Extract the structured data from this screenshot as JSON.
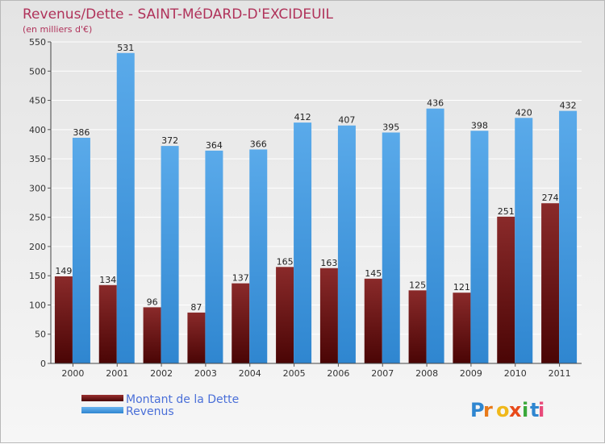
{
  "chart_data": {
    "type": "bar",
    "title": "Revenus/Dette - SAINT-MéDARD-D'EXCIDEUIL",
    "subtitle": "(en milliers d'€)",
    "categories": [
      "2000",
      "2001",
      "2002",
      "2003",
      "2004",
      "2005",
      "2006",
      "2007",
      "2008",
      "2009",
      "2010",
      "2011"
    ],
    "series": [
      {
        "name": "Montant de la Dette",
        "color": "#7a1a1a",
        "values": [
          149,
          134,
          96,
          87,
          137,
          165,
          163,
          145,
          125,
          121,
          251,
          274
        ]
      },
      {
        "name": "Revenus",
        "color": "#3d96de",
        "values": [
          386,
          531,
          372,
          364,
          366,
          412,
          407,
          395,
          436,
          398,
          420,
          432
        ]
      }
    ],
    "yticks": [
      0,
      50,
      100,
      150,
      200,
      250,
      300,
      350,
      400,
      450,
      500,
      550
    ],
    "ylim": [
      0,
      550
    ],
    "grid": true,
    "legend_position": "bottom-left"
  },
  "logo": {
    "text": "Proxiti"
  }
}
